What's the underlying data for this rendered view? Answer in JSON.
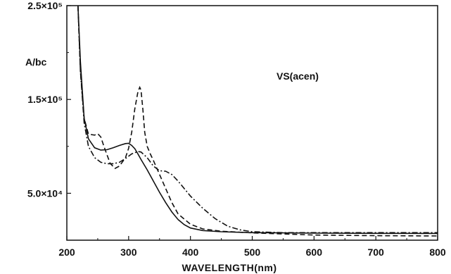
{
  "chart_data": {
    "type": "line",
    "annotation": "VS(acen)",
    "xlabel": "WAVELENGTH(nm)",
    "ylabel": "A/bc",
    "xlim": [
      200,
      800
    ],
    "ylim": [
      0,
      250000
    ],
    "grid": false,
    "x_ticks": [
      {
        "value": 200,
        "label": "200"
      },
      {
        "value": 300,
        "label": "300"
      },
      {
        "value": 400,
        "label": "400"
      },
      {
        "value": 500,
        "label": "500"
      },
      {
        "value": 600,
        "label": "600"
      },
      {
        "value": 700,
        "label": "700"
      },
      {
        "value": 800,
        "label": "800"
      }
    ],
    "y_ticks": [
      {
        "value": 50000,
        "label": "5.0×10⁴"
      },
      {
        "value": 150000,
        "label": "1.5×10⁵"
      },
      {
        "value": 250000,
        "label": "2.5×10⁵"
      }
    ],
    "series": [
      {
        "style": "solid",
        "x": [
          218,
          222,
          228,
          235,
          245,
          255,
          265,
          275,
          285,
          295,
          300,
          305,
          310,
          315,
          320,
          330,
          340,
          350,
          360,
          370,
          380,
          390,
          400,
          420,
          450,
          500,
          600,
          700,
          800
        ],
        "y": [
          250000,
          190000,
          130000,
          108000,
          98500,
          96000,
          96500,
          98500,
          101000,
          103000,
          103200,
          101000,
          97500,
          92000,
          86000,
          75000,
          63000,
          51000,
          40000,
          30000,
          22000,
          16500,
          13000,
          10300,
          9000,
          8000,
          7500,
          7300,
          7200
        ]
      },
      {
        "style": "dashed",
        "x": [
          218,
          222,
          228,
          235,
          245,
          250,
          255,
          260,
          270,
          278,
          285,
          295,
          300,
          305,
          310,
          315,
          318,
          320,
          323,
          326,
          330,
          335,
          340,
          350,
          360,
          370,
          380,
          400,
          420,
          450,
          500,
          600,
          700,
          800
        ],
        "y": [
          250000,
          180000,
          130000,
          113000,
          112000,
          113500,
          110000,
          100000,
          82000,
          76500,
          79000,
          88000,
          98000,
          115000,
          140000,
          158000,
          163000,
          160000,
          140000,
          115000,
          100000,
          92000,
          85000,
          70000,
          55000,
          40000,
          28000,
          17000,
          12000,
          9500,
          7800,
          5500,
          4800,
          4500
        ]
      },
      {
        "style": "dash-dot",
        "x": [
          218,
          222,
          228,
          235,
          245,
          255,
          265,
          275,
          285,
          295,
          305,
          315,
          320,
          330,
          340,
          350,
          360,
          370,
          380,
          390,
          400,
          420,
          440,
          460,
          480,
          500,
          550,
          600,
          700,
          800
        ],
        "y": [
          250000,
          180000,
          125000,
          100000,
          88000,
          83000,
          81500,
          81500,
          83000,
          87000,
          92000,
          94500,
          94000,
          88000,
          79000,
          74000,
          73500,
          70000,
          63000,
          55000,
          47000,
          34000,
          23000,
          15000,
          11000,
          9000,
          8000,
          8000,
          8000,
          8000
        ]
      }
    ]
  }
}
